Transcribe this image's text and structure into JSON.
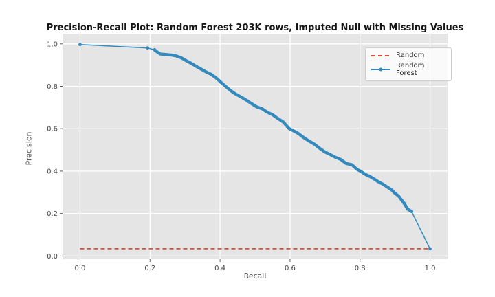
{
  "figure": {
    "title": "Precision-Recall Plot: Random Forest 203K rows, Imputed Null with Missing Values"
  },
  "chart_data": {
    "type": "line",
    "title": "Precision-Recall Plot: Random Forest 203K rows, Imputed Null with Missing Values",
    "xlabel": "Recall",
    "ylabel": "Precision",
    "xlim": [
      -0.05,
      1.05
    ],
    "ylim": [
      -0.015,
      1.048
    ],
    "xticks": [
      "0.0",
      "0.2",
      "0.4",
      "0.6",
      "0.8",
      "1.0"
    ],
    "yticks": [
      "0.0",
      "0.2",
      "0.4",
      "0.6",
      "0.8",
      "1.0"
    ],
    "grid": true,
    "plot_background": "#e5e5e5",
    "grid_color": "#ffffff",
    "tick_color": "#555555",
    "tick_label_color": "#444444",
    "legend_position": "upper-right",
    "series": [
      {
        "name": "Random",
        "color": "#E24A33",
        "line_style": "dashed",
        "marker": "none",
        "points": [
          [
            0.0,
            0.034
          ],
          [
            1.0,
            0.034
          ]
        ]
      },
      {
        "name": "Random Forest",
        "color": "#348ABD",
        "line_style": "solid",
        "marker": "dot",
        "thick_range": [
          0.213,
          0.947
        ],
        "marker_points": [
          [
            0.0,
            0.997
          ],
          [
            0.193,
            0.981
          ],
          [
            0.213,
            0.972
          ],
          [
            0.926,
            0.248
          ],
          [
            0.936,
            0.221
          ],
          [
            0.947,
            0.21
          ],
          [
            1.0,
            0.034
          ]
        ],
        "points": [
          [
            0.0,
            0.997
          ],
          [
            0.193,
            0.981
          ],
          [
            0.213,
            0.972
          ],
          [
            0.222,
            0.96
          ],
          [
            0.23,
            0.952
          ],
          [
            0.245,
            0.95
          ],
          [
            0.26,
            0.948
          ],
          [
            0.275,
            0.943
          ],
          [
            0.29,
            0.934
          ],
          [
            0.3,
            0.924
          ],
          [
            0.315,
            0.911
          ],
          [
            0.33,
            0.896
          ],
          [
            0.345,
            0.882
          ],
          [
            0.36,
            0.868
          ],
          [
            0.375,
            0.856
          ],
          [
            0.39,
            0.838
          ],
          [
            0.402,
            0.82
          ],
          [
            0.416,
            0.8
          ],
          [
            0.43,
            0.78
          ],
          [
            0.445,
            0.763
          ],
          [
            0.46,
            0.75
          ],
          [
            0.475,
            0.735
          ],
          [
            0.49,
            0.718
          ],
          [
            0.505,
            0.703
          ],
          [
            0.52,
            0.694
          ],
          [
            0.535,
            0.678
          ],
          [
            0.55,
            0.666
          ],
          [
            0.565,
            0.648
          ],
          [
            0.58,
            0.633
          ],
          [
            0.597,
            0.601
          ],
          [
            0.61,
            0.59
          ],
          [
            0.625,
            0.576
          ],
          [
            0.64,
            0.557
          ],
          [
            0.655,
            0.541
          ],
          [
            0.67,
            0.527
          ],
          [
            0.685,
            0.507
          ],
          [
            0.7,
            0.49
          ],
          [
            0.715,
            0.478
          ],
          [
            0.73,
            0.465
          ],
          [
            0.745,
            0.455
          ],
          [
            0.76,
            0.436
          ],
          [
            0.777,
            0.43
          ],
          [
            0.79,
            0.41
          ],
          [
            0.803,
            0.398
          ],
          [
            0.815,
            0.385
          ],
          [
            0.828,
            0.375
          ],
          [
            0.84,
            0.363
          ],
          [
            0.852,
            0.35
          ],
          [
            0.865,
            0.339
          ],
          [
            0.878,
            0.325
          ],
          [
            0.89,
            0.312
          ],
          [
            0.9,
            0.295
          ],
          [
            0.91,
            0.283
          ],
          [
            0.918,
            0.265
          ],
          [
            0.926,
            0.248
          ],
          [
            0.936,
            0.221
          ],
          [
            0.947,
            0.21
          ],
          [
            1.0,
            0.034
          ]
        ]
      }
    ]
  }
}
